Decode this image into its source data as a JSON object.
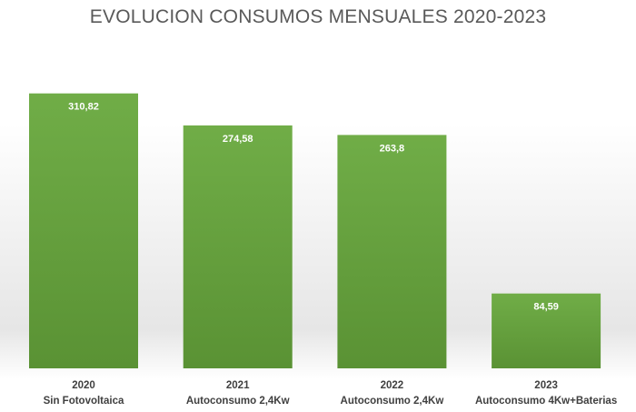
{
  "chart_data": {
    "type": "bar",
    "title": "EVOLUCION CONSUMOS MENSUALES 2020-2023",
    "categories": [
      [
        "2020",
        "Sin Fotovoltaica"
      ],
      [
        "2021",
        "Autoconsumo 2,4Kw"
      ],
      [
        "2022",
        "Autoconsumo 2,4Kw"
      ],
      [
        "2023",
        "Autoconsumo 4Kw+Baterias"
      ]
    ],
    "values": [
      310.82,
      274.58,
      263.8,
      84.59
    ],
    "data_labels": [
      "310,82",
      "274,58",
      "263,8",
      "84,59"
    ],
    "xlabel": "",
    "ylabel": "",
    "ylim": [
      0,
      330
    ],
    "grid": false,
    "legend": "none",
    "bar_color_top": "#70ad47",
    "bar_color_bottom": "#5a9234"
  }
}
